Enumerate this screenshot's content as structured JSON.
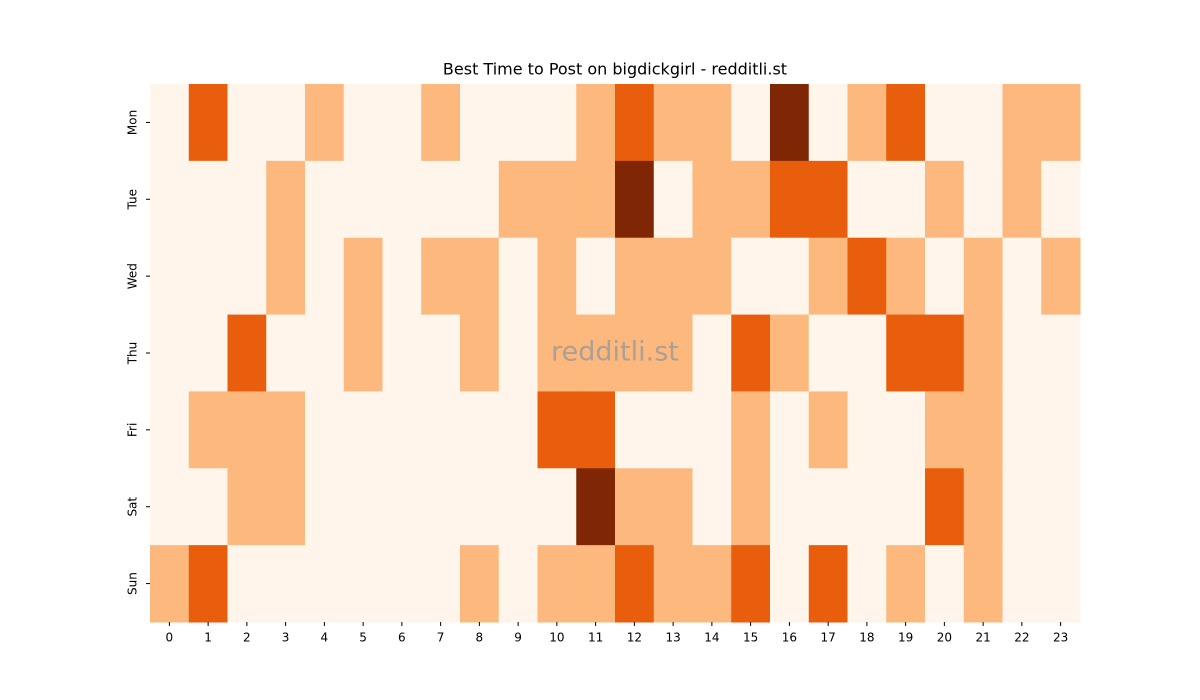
{
  "chart_data": {
    "type": "heatmap",
    "title": "Best Time to Post on bigdickgirl - redditli.st",
    "watermark": "redditli.st",
    "x": [
      0,
      1,
      2,
      3,
      4,
      5,
      6,
      7,
      8,
      9,
      10,
      11,
      12,
      13,
      14,
      15,
      16,
      17,
      18,
      19,
      20,
      21,
      22,
      23
    ],
    "y": [
      "Mon",
      "Tue",
      "Wed",
      "Thu",
      "Fri",
      "Sat",
      "Sun"
    ],
    "values": [
      [
        0,
        2,
        0,
        0,
        1,
        0,
        0,
        1,
        0,
        0,
        0,
        1,
        2,
        1,
        1,
        0,
        3,
        0,
        1,
        2,
        0,
        0,
        1,
        1
      ],
      [
        0,
        0,
        0,
        1,
        0,
        0,
        0,
        0,
        0,
        1,
        1,
        1,
        3,
        0,
        1,
        1,
        2,
        2,
        0,
        0,
        1,
        0,
        1,
        0
      ],
      [
        0,
        0,
        0,
        1,
        0,
        1,
        0,
        1,
        1,
        0,
        1,
        0,
        1,
        1,
        1,
        0,
        0,
        1,
        2,
        1,
        0,
        1,
        0,
        1
      ],
      [
        0,
        0,
        2,
        0,
        0,
        1,
        0,
        0,
        1,
        0,
        1,
        1,
        1,
        1,
        0,
        2,
        1,
        0,
        0,
        2,
        2,
        1,
        0,
        0
      ],
      [
        0,
        1,
        1,
        1,
        0,
        0,
        0,
        0,
        0,
        0,
        2,
        2,
        0,
        0,
        0,
        1,
        0,
        1,
        0,
        0,
        1,
        1,
        0,
        0
      ],
      [
        0,
        0,
        1,
        1,
        0,
        0,
        0,
        0,
        0,
        0,
        0,
        3,
        1,
        1,
        0,
        1,
        0,
        0,
        0,
        0,
        2,
        1,
        0,
        0
      ],
      [
        1,
        2,
        0,
        0,
        0,
        0,
        0,
        0,
        1,
        0,
        1,
        1,
        2,
        1,
        1,
        2,
        0,
        2,
        0,
        1,
        0,
        1,
        0,
        0
      ]
    ],
    "colors": [
      "#fff5eb",
      "#fdb87d",
      "#e95e0d",
      "#7f2704"
    ]
  }
}
